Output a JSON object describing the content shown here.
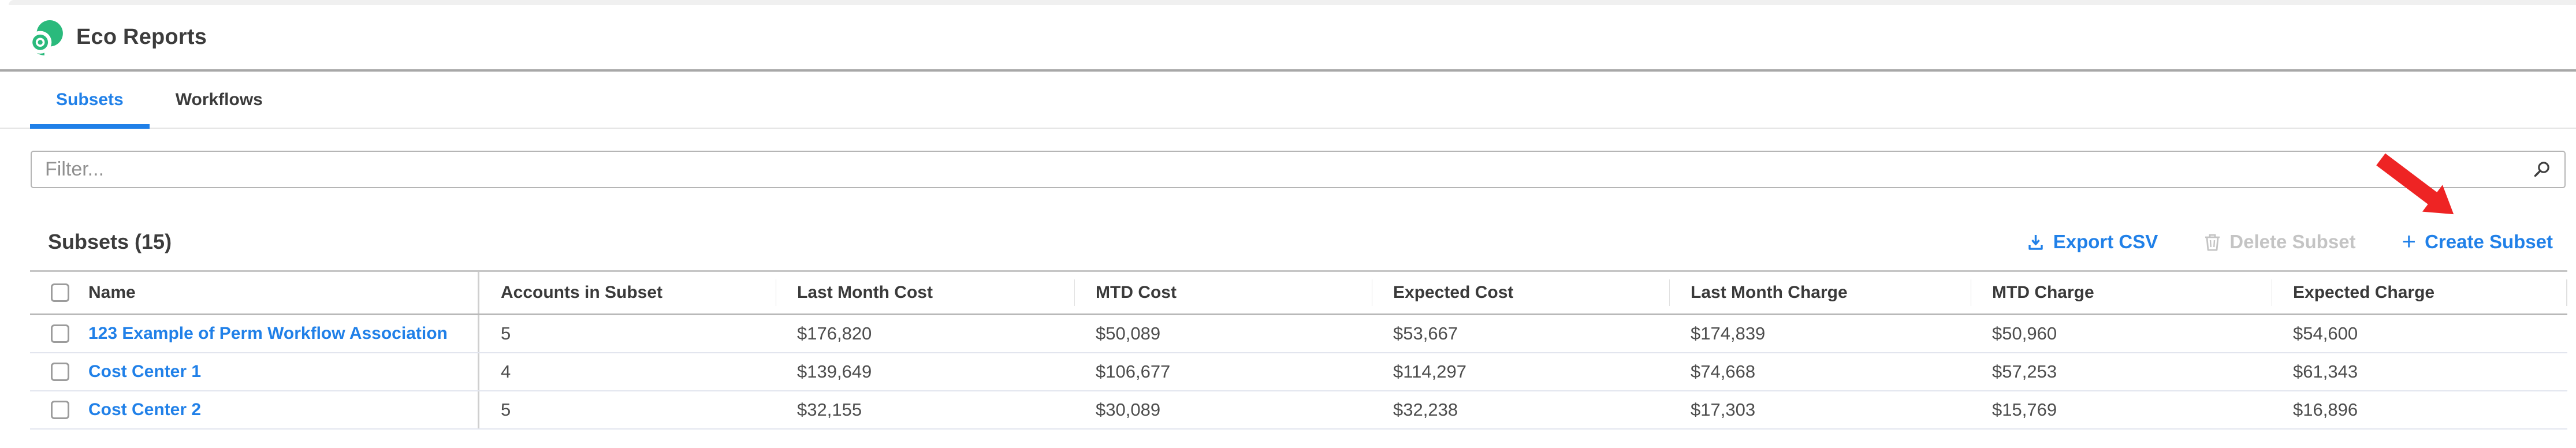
{
  "app": {
    "title": "Eco Reports"
  },
  "tabs": [
    {
      "label": "Subsets",
      "active": true
    },
    {
      "label": "Workflows",
      "active": false
    }
  ],
  "filter": {
    "placeholder": "Filter..."
  },
  "list": {
    "heading": "Subsets (15)"
  },
  "toolbar": {
    "export_label": "Export CSV",
    "delete_label": "Delete Subset",
    "create_plus": "+",
    "create_label": "Create Subset"
  },
  "table": {
    "columns": [
      "Name",
      "Accounts in Subset",
      "Last Month Cost",
      "MTD Cost",
      "Expected Cost",
      "Last Month Charge",
      "MTD Charge",
      "Expected Charge"
    ],
    "rows": [
      {
        "name": "123 Example of Perm Workflow Association",
        "values": [
          "5",
          "$176,820",
          "$50,089",
          "$53,667",
          "$174,839",
          "$50,960",
          "$54,600"
        ]
      },
      {
        "name": "Cost Center 1",
        "values": [
          "4",
          "$139,649",
          "$106,677",
          "$114,297",
          "$74,668",
          "$57,253",
          "$61,343"
        ]
      },
      {
        "name": "Cost Center 2",
        "values": [
          "5",
          "$32,155",
          "$30,089",
          "$32,238",
          "$17,303",
          "$15,769",
          "$16,896"
        ]
      }
    ]
  },
  "annotation": {
    "shape": "arrow",
    "color": "#ee2424",
    "points_to": "Create Subset"
  },
  "colors": {
    "accent_blue": "#2080e8",
    "brand_green": "#2aba7c",
    "arrow_red": "#ee2424",
    "disabled_gray": "#c4c4c4"
  }
}
